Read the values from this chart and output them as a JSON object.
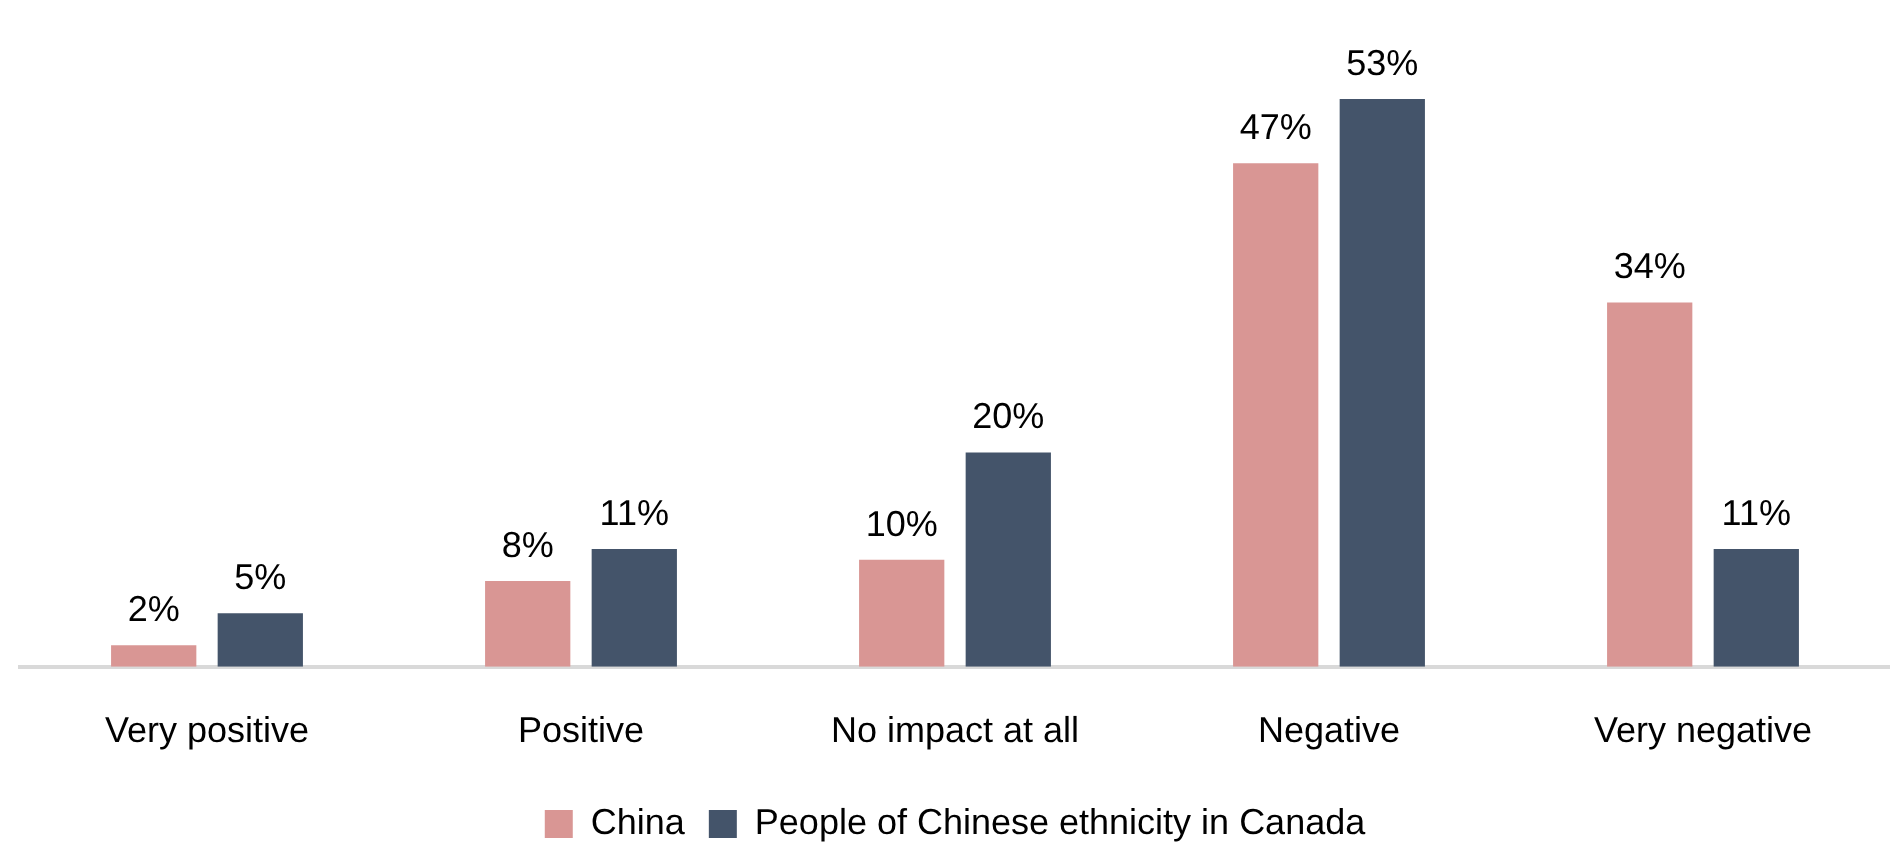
{
  "chart_data": {
    "type": "bar",
    "categories": [
      "Very positive",
      "Positive",
      "No impact at all",
      "Negative",
      "Very negative"
    ],
    "series": [
      {
        "name": "China",
        "color": "#d99694",
        "values": [
          2,
          8,
          10,
          47,
          34
        ],
        "value_labels": [
          "2%",
          "8%",
          "10%",
          "47%",
          "34%"
        ]
      },
      {
        "name": "People of Chinese ethnicity in Canada",
        "color": "#44546a",
        "values": [
          5,
          11,
          20,
          53,
          11
        ],
        "value_labels": [
          "5%",
          "11%",
          "20%",
          "53%",
          "11%"
        ]
      }
    ],
    "tick_labels": "x",
    "grid": false,
    "legend": "bottom"
  }
}
